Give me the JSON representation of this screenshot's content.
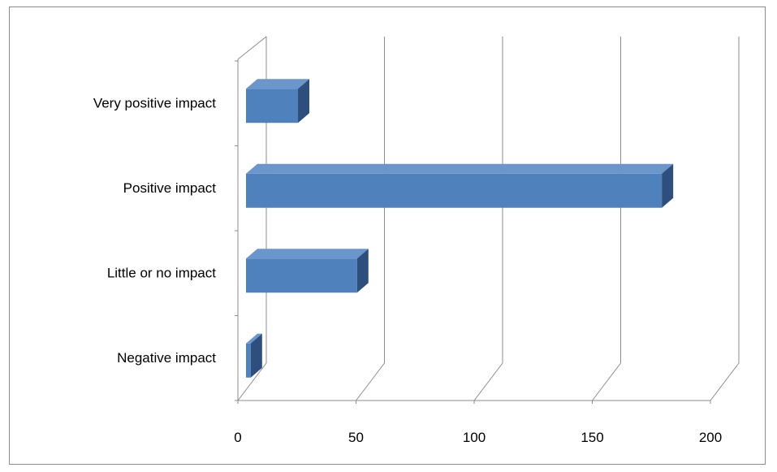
{
  "chart_data": {
    "type": "bar",
    "orientation": "horizontal",
    "style": "3d",
    "categories": [
      "Very positive impact",
      "Positive impact",
      "Little or no impact",
      "Negative impact"
    ],
    "values": [
      22,
      176,
      47,
      2
    ],
    "xlim": [
      0,
      200
    ],
    "x_ticks": [
      "0",
      "50",
      "100",
      "150",
      "200"
    ],
    "grid": true,
    "legend": "none",
    "title": "",
    "xlabel": "",
    "ylabel": "",
    "colors": {
      "bar_front": "#4f81bd",
      "bar_top": "#6a96cc",
      "bar_side": "#2e4f7d",
      "grid": "#8c8c8c"
    }
  }
}
